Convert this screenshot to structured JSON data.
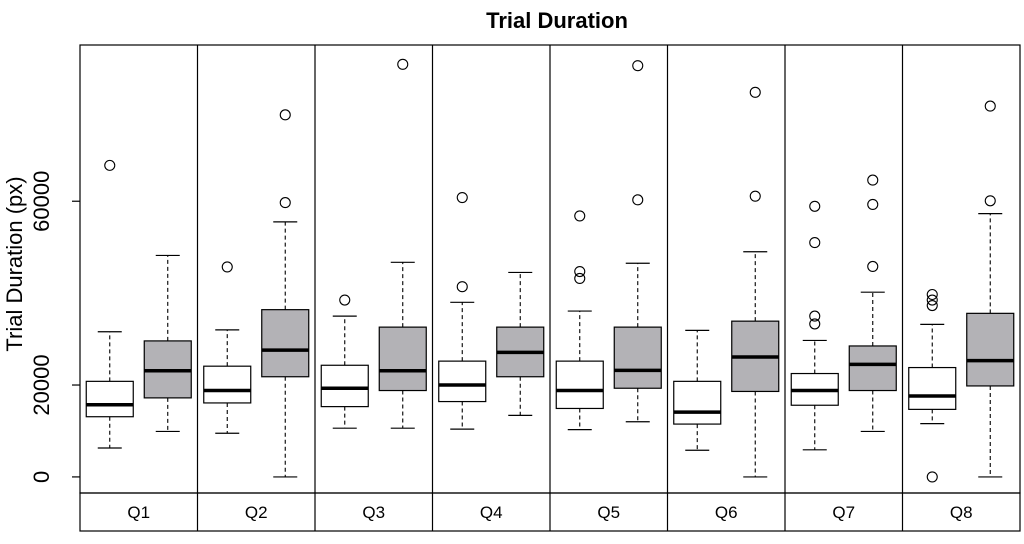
{
  "chart_data": {
    "type": "box",
    "title": "Trial Duration",
    "ylabel": "Trial Duration (px)",
    "xlabel": "",
    "ylim": [
      -3500,
      94000
    ],
    "yticks": [
      0,
      20000,
      60000
    ],
    "categories": [
      "Q1",
      "Q2",
      "Q3",
      "Q4",
      "Q5",
      "Q6",
      "Q7",
      "Q8"
    ],
    "grid": false,
    "legend": "none",
    "colors": {
      "condition_a": "#ffffff",
      "condition_b": "#b3b2b6",
      "median": "#000000",
      "frame": "#000000"
    },
    "series": [
      {
        "fill": "#ffffff",
        "boxes": [
          {
            "whisker_low": 6300,
            "q1": 13100,
            "median": 15700,
            "q3": 20800,
            "whisker_high": 31600,
            "outliers": [
              67800
            ]
          },
          {
            "whisker_low": 9500,
            "q1": 16100,
            "median": 18800,
            "q3": 24100,
            "whisker_high": 32000,
            "outliers": [
              45700
            ]
          },
          {
            "whisker_low": 10600,
            "q1": 15300,
            "median": 19300,
            "q3": 24300,
            "whisker_high": 35000,
            "outliers": [
              38500
            ]
          },
          {
            "whisker_low": 10400,
            "q1": 16400,
            "median": 20000,
            "q3": 25200,
            "whisker_high": 38000,
            "outliers": [
              41400,
              60800
            ]
          },
          {
            "whisker_low": 10300,
            "q1": 14900,
            "median": 18800,
            "q3": 25200,
            "whisker_high": 36100,
            "outliers": [
              43200,
              44700,
              56800
            ]
          },
          {
            "whisker_low": 5800,
            "q1": 11500,
            "median": 14100,
            "q3": 20800,
            "whisker_high": 31900,
            "outliers": []
          },
          {
            "whisker_low": 5900,
            "q1": 15600,
            "median": 18800,
            "q3": 22500,
            "whisker_high": 29700,
            "outliers": [
              33300,
              35000,
              51000,
              58900
            ]
          },
          {
            "whisker_low": 11600,
            "q1": 14700,
            "median": 17600,
            "q3": 23800,
            "whisker_high": 33200,
            "outliers": [
              0,
              37300,
              38500,
              39700
            ]
          }
        ]
      },
      {
        "fill": "#b3b2b6",
        "boxes": [
          {
            "whisker_low": 9900,
            "q1": 17200,
            "median": 23100,
            "q3": 29600,
            "whisker_high": 48200,
            "outliers": []
          },
          {
            "whisker_low": 0,
            "q1": 21800,
            "median": 27600,
            "q3": 36400,
            "whisker_high": 55500,
            "outliers": [
              59700,
              78800
            ]
          },
          {
            "whisker_low": 10600,
            "q1": 18800,
            "median": 23100,
            "q3": 32600,
            "whisker_high": 46700,
            "outliers": [
              89800
            ]
          },
          {
            "whisker_low": 13400,
            "q1": 21800,
            "median": 27100,
            "q3": 32600,
            "whisker_high": 44500,
            "outliers": []
          },
          {
            "whisker_low": 12000,
            "q1": 19300,
            "median": 23200,
            "q3": 32600,
            "whisker_high": 46500,
            "outliers": [
              60300,
              89500
            ]
          },
          {
            "whisker_low": 0,
            "q1": 18600,
            "median": 26100,
            "q3": 33900,
            "whisker_high": 49000,
            "outliers": [
              61100,
              83700
            ]
          },
          {
            "whisker_low": 9900,
            "q1": 18800,
            "median": 24500,
            "q3": 28500,
            "whisker_high": 40200,
            "outliers": [
              45800,
              59300,
              64600
            ]
          },
          {
            "whisker_low": 0,
            "q1": 19800,
            "median": 25300,
            "q3": 35600,
            "whisker_high": 57300,
            "outliers": [
              60100,
              80700
            ]
          }
        ]
      }
    ]
  }
}
